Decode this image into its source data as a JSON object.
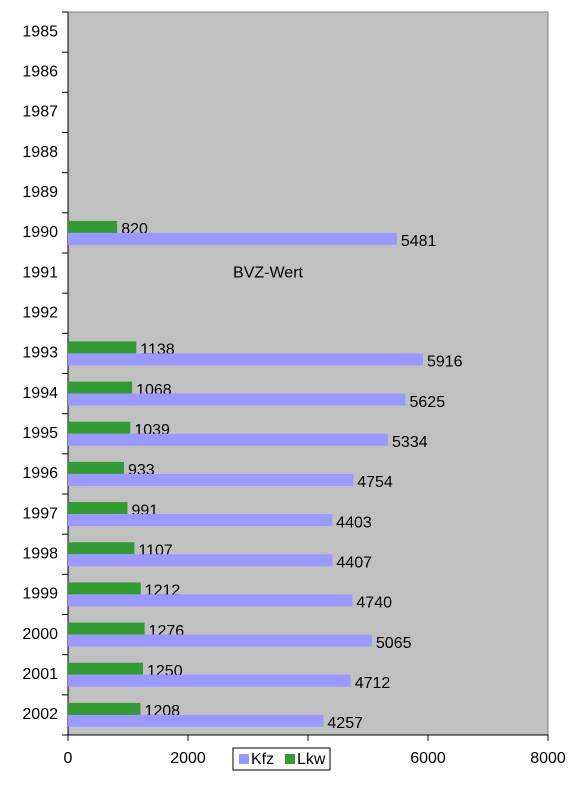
{
  "chart_data": {
    "type": "bar",
    "orientation": "horizontal",
    "categories": [
      "1985",
      "1986",
      "1987",
      "1988",
      "1989",
      "1990",
      "1991",
      "1992",
      "1993",
      "1994",
      "1995",
      "1996",
      "1997",
      "1998",
      "1999",
      "2000",
      "2001",
      "2002"
    ],
    "series": [
      {
        "name": "Kfz",
        "color": "#9999ff",
        "values": [
          null,
          null,
          null,
          null,
          null,
          5481,
          null,
          null,
          5916,
          5625,
          5334,
          4754,
          4403,
          4407,
          4740,
          5065,
          4712,
          4257
        ]
      },
      {
        "name": "Lkw",
        "color": "#339933",
        "values": [
          null,
          null,
          null,
          null,
          null,
          820,
          null,
          null,
          1138,
          1068,
          1039,
          933,
          991,
          1107,
          1212,
          1276,
          1250,
          1208
        ]
      }
    ],
    "annotation": "BVZ-Wert",
    "xlim": [
      0,
      8000
    ],
    "xticks": [
      0,
      2000,
      4000,
      6000,
      8000
    ],
    "plot_background": "#c0c0c0",
    "legend": "bottom"
  }
}
